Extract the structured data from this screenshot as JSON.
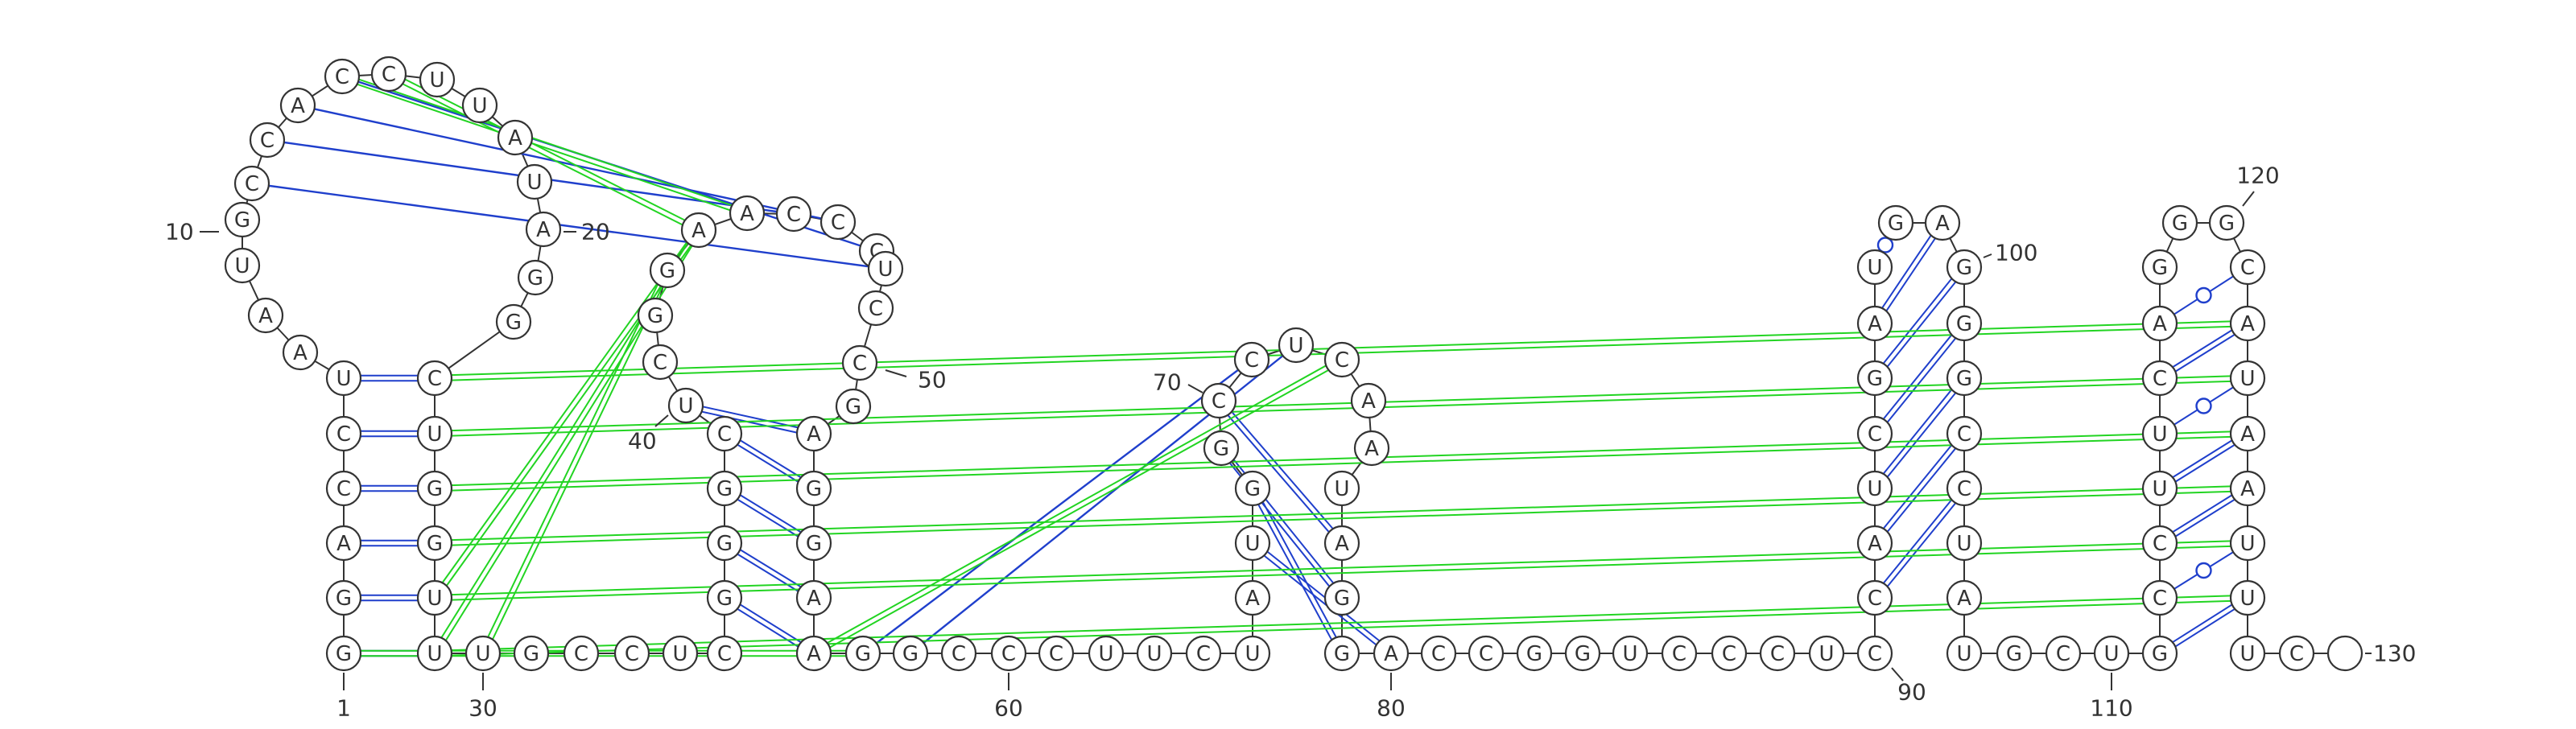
{
  "sequence": "GGACCUAAUGCCACCUUAUAGGCUGGUUUGCCUCGGGCUCGGAACCCUCCGAGGAAGGCCCUUCUAUGGCCUCAAUAGGACCGGUCCCUCCAUCGAUGAGGGCCUAUGCUGCCUUCAGGGCAUAAUUUC",
  "colors": {
    "canonical_pair": "#1f3fcc",
    "wobble_pair": "#1f3fcc",
    "tertiary_interaction": "#22d422",
    "long_range_pair": "#1f3fcc",
    "nucleotide_outline": "#333333"
  },
  "position_labels": [
    {
      "index": 1,
      "text": "1"
    },
    {
      "index": 10,
      "text": "10"
    },
    {
      "index": 20,
      "text": "20"
    },
    {
      "index": 30,
      "text": "30"
    },
    {
      "index": 40,
      "text": "40"
    },
    {
      "index": 50,
      "text": "50"
    },
    {
      "index": 60,
      "text": "60"
    },
    {
      "index": 70,
      "text": "70"
    },
    {
      "index": 80,
      "text": "80"
    },
    {
      "index": 90,
      "text": "90"
    },
    {
      "index": 100,
      "text": "100"
    },
    {
      "index": 110,
      "text": "110"
    },
    {
      "index": 120,
      "text": "120"
    },
    {
      "index": 130,
      "text": "130"
    }
  ],
  "pairs": [
    {
      "i": 1,
      "j": 28,
      "type": "canonical"
    },
    {
      "i": 2,
      "j": 27,
      "type": "canonical"
    },
    {
      "i": 3,
      "j": 26,
      "type": "canonical"
    },
    {
      "i": 4,
      "j": 25,
      "type": "canonical"
    },
    {
      "i": 5,
      "j": 24,
      "type": "canonical"
    },
    {
      "i": 6,
      "j": 23,
      "type": "canonical"
    },
    {
      "i": 35,
      "j": 56,
      "type": "canonical"
    },
    {
      "i": 36,
      "j": 55,
      "type": "canonical"
    },
    {
      "i": 37,
      "j": 54,
      "type": "canonical"
    },
    {
      "i": 38,
      "j": 53,
      "type": "canonical"
    },
    {
      "i": 39,
      "j": 52,
      "type": "canonical"
    },
    {
      "i": 67,
      "j": 80,
      "type": "canonical"
    },
    {
      "i": 68,
      "j": 79,
      "type": "canonical"
    },
    {
      "i": 69,
      "j": 78,
      "type": "canonical"
    },
    {
      "i": 70,
      "j": 77,
      "type": "canonical"
    },
    {
      "i": 91,
      "j": 104,
      "type": "canonical"
    },
    {
      "i": 92,
      "j": 103,
      "type": "canonical"
    },
    {
      "i": 93,
      "j": 102,
      "type": "canonical"
    },
    {
      "i": 94,
      "j": 101,
      "type": "canonical"
    },
    {
      "i": 95,
      "j": 100,
      "type": "canonical"
    },
    {
      "i": 96,
      "j": 99,
      "type": "canonical"
    },
    {
      "i": 97,
      "j": 98,
      "type": "wobble"
    },
    {
      "i": 111,
      "j": 127,
      "type": "canonical"
    },
    {
      "i": 112,
      "j": 126,
      "type": "wobble"
    },
    {
      "i": 113,
      "j": 125,
      "type": "canonical"
    },
    {
      "i": 114,
      "j": 124,
      "type": "canonical"
    },
    {
      "i": 115,
      "j": 123,
      "type": "wobble"
    },
    {
      "i": 116,
      "j": 122,
      "type": "canonical"
    },
    {
      "i": 117,
      "j": 121,
      "type": "wobble"
    }
  ],
  "long_range": [
    {
      "i": 11,
      "j": 48,
      "type": "canonical"
    },
    {
      "i": 12,
      "j": 45,
      "type": "canonical"
    },
    {
      "i": 13,
      "j": 46,
      "type": "canonical"
    },
    {
      "i": 14,
      "j": 47,
      "type": "canonical"
    },
    {
      "i": 14,
      "j": 44,
      "type": "tertiary"
    },
    {
      "i": 15,
      "j": 43,
      "type": "tertiary"
    },
    {
      "i": 28,
      "j": 43,
      "type": "tertiary"
    },
    {
      "i": 27,
      "j": 43,
      "type": "tertiary"
    },
    {
      "i": 29,
      "j": 42,
      "type": "tertiary"
    },
    {
      "i": 1,
      "j": 57,
      "type": "tertiary"
    },
    {
      "i": 57,
      "j": 71,
      "type": "canonical"
    },
    {
      "i": 58,
      "j": 72,
      "type": "canonical"
    },
    {
      "i": 56,
      "j": 73,
      "type": "tertiary"
    },
    {
      "i": 23,
      "j": 122,
      "type": "tertiary"
    },
    {
      "i": 24,
      "j": 123,
      "type": "tertiary"
    },
    {
      "i": 25,
      "j": 124,
      "type": "tertiary"
    },
    {
      "i": 26,
      "j": 125,
      "type": "tertiary"
    },
    {
      "i": 27,
      "j": 126,
      "type": "tertiary"
    },
    {
      "i": 28,
      "j": 127,
      "type": "tertiary"
    }
  ]
}
